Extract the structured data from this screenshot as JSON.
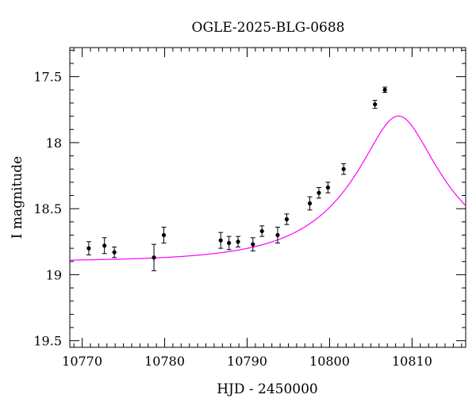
{
  "chart_data": {
    "type": "scatter",
    "title": "OGLE-2025-BLG-0688",
    "xlabel": "HJD - 2450000",
    "ylabel": "I magnitude",
    "xlim": [
      10768.5,
      10816.5
    ],
    "ylim": [
      19.55,
      17.28
    ],
    "y_inverted": true,
    "grid": false,
    "legend": "none",
    "x_ticks": [
      10770,
      10780,
      10790,
      10800,
      10810
    ],
    "x_tick_labels": [
      "10770",
      "10780",
      "10790",
      "10800",
      "10810"
    ],
    "y_ticks": [
      17.5,
      18,
      18.5,
      19,
      19.5
    ],
    "y_tick_labels": [
      "17.5",
      "18",
      "18.5",
      "19",
      "19.5"
    ],
    "series": [
      {
        "type": "scatter_errorbar",
        "color": "#000000",
        "x": [
          10770.8,
          10772.7,
          10773.9,
          10778.7,
          10779.9,
          10786.8,
          10787.8,
          10788.9,
          10790.7,
          10791.8,
          10793.7,
          10794.8,
          10797.6,
          10798.7,
          10799.8,
          10801.7,
          10805.5,
          10806.7
        ],
        "y": [
          18.8,
          18.78,
          18.83,
          18.87,
          18.7,
          18.74,
          18.76,
          18.75,
          18.77,
          18.67,
          18.7,
          18.58,
          18.46,
          18.38,
          18.34,
          18.2,
          17.71,
          17.6
        ],
        "yerr": [
          0.05,
          0.06,
          0.04,
          0.1,
          0.06,
          0.06,
          0.05,
          0.04,
          0.05,
          0.04,
          0.06,
          0.04,
          0.05,
          0.04,
          0.04,
          0.04,
          0.03,
          0.02
        ]
      },
      {
        "type": "line",
        "color": "#ff00ff",
        "model": {
          "t0": 10808.35,
          "tE": 12.0,
          "u0": 0.325,
          "baseline_mag": 18.9,
          "blend_fraction": 0.8
        }
      }
    ]
  }
}
